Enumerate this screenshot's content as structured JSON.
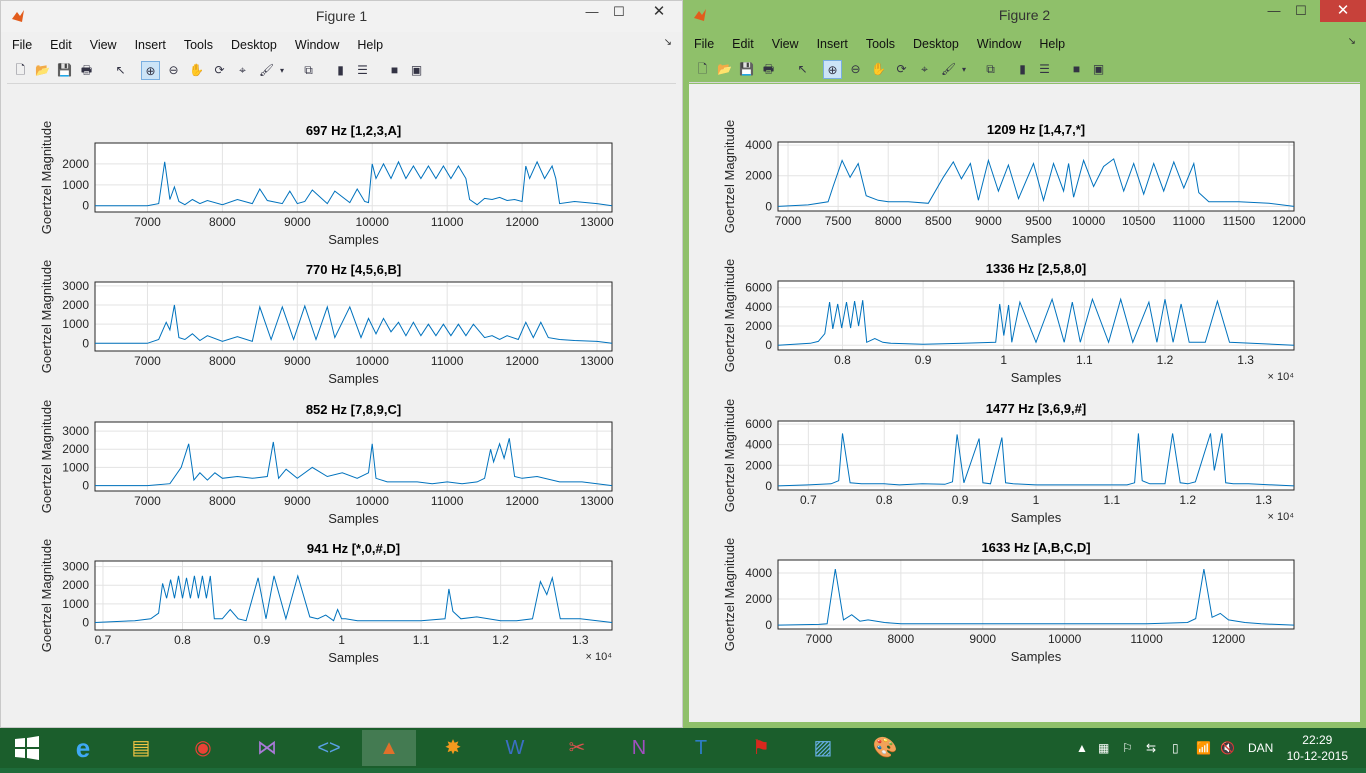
{
  "windows": [
    {
      "title": "Figure 1",
      "menu": [
        "File",
        "Edit",
        "View",
        "Insert",
        "Tools",
        "Desktop",
        "Window",
        "Help"
      ],
      "plots": [
        {
          "title": "697 Hz [1,2,3,A]",
          "ylabel": "Goertzel Magnitude",
          "xlabel": "Samples",
          "xticks": [
            "7000",
            "8000",
            "9000",
            "10000",
            "11000",
            "12000",
            "13000"
          ],
          "yticks": [
            "2000",
            "1000",
            "0"
          ],
          "exponent": ""
        },
        {
          "title": "770 Hz [4,5,6,B]",
          "ylabel": "Goertzel Magnitude",
          "xlabel": "Samples",
          "xticks": [
            "7000",
            "8000",
            "9000",
            "10000",
            "11000",
            "12000",
            "13000"
          ],
          "yticks": [
            "3000",
            "2000",
            "1000",
            "0"
          ],
          "exponent": ""
        },
        {
          "title": "852 Hz [7,8,9,C]",
          "ylabel": "Goertzel Magnitude",
          "xlabel": "Samples",
          "xticks": [
            "7000",
            "8000",
            "9000",
            "10000",
            "11000",
            "12000",
            "13000"
          ],
          "yticks": [
            "3000",
            "2000",
            "1000",
            "0"
          ],
          "exponent": ""
        },
        {
          "title": "941 Hz [*,0,#,D]",
          "ylabel": "Goertzel Magnitude",
          "xlabel": "Samples",
          "xticks": [
            "0.7",
            "0.8",
            "0.9",
            "1",
            "1.1",
            "1.2",
            "1.3"
          ],
          "yticks": [
            "3000",
            "2000",
            "1000",
            "0"
          ],
          "exponent": "× 10⁴"
        }
      ]
    },
    {
      "title": "Figure 2",
      "menu": [
        "File",
        "Edit",
        "View",
        "Insert",
        "Tools",
        "Desktop",
        "Window",
        "Help"
      ],
      "plots": [
        {
          "title": "1209 Hz [1,4,7,*]",
          "ylabel": "Goertzel Magnitude",
          "xlabel": "Samples",
          "xticks": [
            "7000",
            "7500",
            "8000",
            "8500",
            "9000",
            "9500",
            "10000",
            "10500",
            "11000",
            "11500",
            "12000"
          ],
          "yticks": [
            "4000",
            "2000",
            "0"
          ],
          "exponent": ""
        },
        {
          "title": "1336 Hz [2,5,8,0]",
          "ylabel": "Goertzel Magnitude",
          "xlabel": "Samples",
          "xticks": [
            "0.8",
            "0.9",
            "1",
            "1.1",
            "1.2",
            "1.3"
          ],
          "yticks": [
            "6000",
            "4000",
            "2000",
            "0"
          ],
          "exponent": "× 10⁴"
        },
        {
          "title": "1477 Hz [3,6,9,#]",
          "ylabel": "Goertzel Magnitude",
          "xlabel": "Samples",
          "xticks": [
            "0.7",
            "0.8",
            "0.9",
            "1",
            "1.1",
            "1.2",
            "1.3"
          ],
          "yticks": [
            "6000",
            "4000",
            "2000",
            "0"
          ],
          "exponent": "× 10⁴"
        },
        {
          "title": "1633 Hz [A,B,C,D]",
          "ylabel": "Goertzel Magnitude",
          "xlabel": "Samples",
          "xticks": [
            "7000",
            "8000",
            "9000",
            "10000",
            "11000",
            "12000"
          ],
          "yticks": [
            "4000",
            "2000",
            "0"
          ],
          "exponent": ""
        }
      ]
    }
  ],
  "chart_data": [
    {
      "type": "line",
      "title": "697 Hz [1,2,3,A]",
      "xlabel": "Samples",
      "ylabel": "Goertzel Magnitude",
      "xlim": [
        6300,
        13200
      ],
      "ylim": [
        -300,
        3000
      ],
      "x": [
        6300,
        7000,
        7150,
        7230,
        7300,
        7360,
        7420,
        7500,
        7600,
        7700,
        7800,
        8000,
        8200,
        8400,
        8500,
        8600,
        8800,
        8900,
        9000,
        9100,
        9200,
        9400,
        9500,
        9700,
        9800,
        9900,
        9950,
        10000,
        10050,
        10150,
        10250,
        10350,
        10450,
        10550,
        10650,
        10750,
        10850,
        10950,
        11050,
        11150,
        11250,
        11300,
        11400,
        11500,
        11600,
        11700,
        11800,
        11900,
        12000,
        12050,
        12100,
        12200,
        12300,
        12400,
        12450,
        12500,
        12700,
        13000,
        13200
      ],
      "y": [
        0,
        0,
        100,
        2100,
        300,
        900,
        200,
        50,
        300,
        100,
        250,
        50,
        300,
        100,
        800,
        250,
        100,
        700,
        100,
        200,
        750,
        100,
        700,
        150,
        800,
        200,
        150,
        2000,
        1300,
        2000,
        1300,
        2100,
        1300,
        1900,
        1300,
        1900,
        1300,
        1900,
        1300,
        1900,
        1300,
        300,
        50,
        350,
        300,
        400,
        250,
        300,
        200,
        1900,
        1300,
        2100,
        1300,
        1900,
        1300,
        100,
        200,
        100,
        0
      ]
    },
    {
      "type": "line",
      "title": "770 Hz [4,5,6,B]",
      "xlabel": "Samples",
      "ylabel": "Goertzel Magnitude",
      "xlim": [
        6300,
        13200
      ],
      "ylim": [
        -400,
        3200
      ],
      "x": [
        6300,
        7000,
        7150,
        7250,
        7300,
        7360,
        7420,
        7500,
        7600,
        7700,
        7800,
        8000,
        8200,
        8400,
        8500,
        8650,
        8800,
        8950,
        9100,
        9250,
        9400,
        9500,
        9700,
        9850,
        9950,
        10050,
        10150,
        10250,
        10350,
        10450,
        10550,
        10650,
        10750,
        10850,
        10950,
        11050,
        11150,
        11250,
        11350,
        11500,
        11600,
        11700,
        11800,
        11950,
        12050,
        12150,
        12250,
        12350,
        12500,
        12700,
        13000,
        13200
      ],
      "y": [
        0,
        0,
        200,
        1100,
        700,
        2000,
        300,
        200,
        500,
        150,
        400,
        100,
        350,
        100,
        1900,
        200,
        1900,
        200,
        1950,
        200,
        1900,
        300,
        1900,
        300,
        1300,
        500,
        1300,
        600,
        1100,
        400,
        1100,
        400,
        1000,
        400,
        1000,
        400,
        1000,
        400,
        1000,
        300,
        400,
        200,
        400,
        200,
        1100,
        300,
        1100,
        300,
        200,
        150,
        100,
        0
      ]
    },
    {
      "type": "line",
      "title": "852 Hz [7,8,9,C]",
      "xlabel": "Samples",
      "ylabel": "Goertzel Magnitude",
      "xlim": [
        6300,
        13200
      ],
      "ylim": [
        -300,
        3500
      ],
      "x": [
        6300,
        7000,
        7300,
        7450,
        7550,
        7620,
        7700,
        7800,
        7900,
        8000,
        8200,
        8400,
        8600,
        8680,
        8750,
        8850,
        9000,
        9200,
        9400,
        9600,
        9800,
        9950,
        10000,
        10050,
        10200,
        10400,
        10600,
        10800,
        11000,
        11200,
        11400,
        11500,
        11580,
        11620,
        11700,
        11760,
        11830,
        11900,
        12000,
        12200,
        12500,
        12800,
        13200
      ],
      "y": [
        0,
        0,
        100,
        1000,
        2300,
        300,
        700,
        300,
        700,
        400,
        500,
        400,
        500,
        2400,
        400,
        900,
        400,
        1000,
        500,
        700,
        400,
        700,
        2300,
        400,
        200,
        200,
        200,
        100,
        200,
        100,
        200,
        400,
        2000,
        1300,
        2300,
        1500,
        2600,
        500,
        400,
        500,
        200,
        200,
        0
      ]
    },
    {
      "type": "line",
      "title": "941 Hz [*,0,#,D]",
      "xlabel": "Samples",
      "ylabel": "Goertzel Magnitude",
      "xlim": [
        6900,
        13400
      ],
      "ylim": [
        -400,
        3300
      ],
      "x": [
        6900,
        7400,
        7600,
        7700,
        7750,
        7800,
        7850,
        7900,
        7950,
        8000,
        8050,
        8100,
        8150,
        8200,
        8250,
        8300,
        8350,
        8400,
        8500,
        8600,
        8700,
        8800,
        8950,
        9050,
        9150,
        9300,
        9450,
        9600,
        9700,
        9800,
        9900,
        9950,
        10000,
        10050,
        10200,
        10600,
        11000,
        11300,
        11350,
        11400,
        11500,
        11700,
        12000,
        12200,
        12400,
        12500,
        12580,
        12650,
        12750,
        13000,
        13400
      ],
      "y": [
        0,
        100,
        200,
        500,
        2100,
        1300,
        2300,
        1300,
        2500,
        1300,
        2400,
        1300,
        2500,
        1300,
        2500,
        1300,
        2500,
        200,
        200,
        700,
        200,
        100,
        2400,
        200,
        2500,
        200,
        2500,
        300,
        200,
        400,
        100,
        700,
        200,
        200,
        100,
        100,
        100,
        200,
        1800,
        600,
        200,
        300,
        100,
        100,
        200,
        2200,
        1500,
        2400,
        200,
        200,
        0
      ]
    },
    {
      "type": "line",
      "title": "1209 Hz [1,4,7,*]",
      "xlabel": "Samples",
      "ylabel": "Goertzel Magnitude",
      "xlim": [
        6900,
        12050
      ],
      "ylim": [
        -300,
        4200
      ],
      "x": [
        6900,
        7200,
        7400,
        7450,
        7540,
        7620,
        7700,
        7780,
        7900,
        8000,
        8200,
        8400,
        8550,
        8650,
        8730,
        8820,
        8900,
        9000,
        9100,
        9200,
        9300,
        9450,
        9550,
        9650,
        9750,
        9800,
        9850,
        9950,
        10050,
        10150,
        10250,
        10350,
        10450,
        10550,
        10650,
        10750,
        10850,
        10950,
        11050,
        11100,
        11200,
        11500,
        11800,
        12050
      ],
      "y": [
        0,
        100,
        300,
        1300,
        3000,
        1900,
        2800,
        700,
        400,
        300,
        300,
        200,
        1900,
        2900,
        1800,
        2800,
        400,
        3000,
        1000,
        2700,
        500,
        2800,
        400,
        2800,
        1000,
        2800,
        600,
        3000,
        1300,
        2600,
        3100,
        1000,
        2800,
        800,
        2800,
        1000,
        2900,
        1200,
        2800,
        900,
        300,
        300,
        200,
        0
      ]
    },
    {
      "type": "line",
      "title": "1336 Hz [2,5,8,0]",
      "xlabel": "Samples",
      "ylabel": "Goertzel Magnitude",
      "xlim": [
        7200,
        13600
      ],
      "ylim": [
        -500,
        6700
      ],
      "x": [
        7200,
        7600,
        7700,
        7780,
        7840,
        7880,
        7940,
        7990,
        8050,
        8100,
        8150,
        8200,
        8250,
        8300,
        8400,
        8500,
        8600,
        9000,
        9500,
        9900,
        9950,
        10000,
        10060,
        10100,
        10200,
        10400,
        10600,
        10750,
        10850,
        10950,
        11100,
        11300,
        11450,
        11600,
        11800,
        11900,
        12000,
        12100,
        12200,
        12300,
        12500,
        12650,
        12800,
        13600
      ],
      "y": [
        0,
        200,
        400,
        1200,
        4500,
        1700,
        4300,
        1800,
        4500,
        1800,
        4600,
        2000,
        4700,
        300,
        700,
        300,
        200,
        100,
        200,
        300,
        4300,
        1000,
        4200,
        300,
        4500,
        300,
        4800,
        300,
        4500,
        300,
        4800,
        300,
        4800,
        300,
        4500,
        300,
        4800,
        300,
        4300,
        300,
        300,
        4600,
        300,
        0
      ]
    },
    {
      "type": "line",
      "title": "1477 Hz [3,6,9,#]",
      "xlabel": "Samples",
      "ylabel": "Goertzel Magnitude",
      "xlim": [
        6600,
        13400
      ],
      "ylim": [
        -400,
        6300
      ],
      "x": [
        6600,
        7000,
        7300,
        7400,
        7450,
        7550,
        7700,
        8000,
        8200,
        8500,
        8800,
        8900,
        8960,
        9050,
        9250,
        9300,
        9400,
        9550,
        9600,
        9700,
        10000,
        10500,
        11000,
        11200,
        11300,
        11350,
        11400,
        11500,
        11700,
        11800,
        11900,
        12000,
        12100,
        12300,
        12350,
        12450,
        12500,
        12600,
        12800,
        13400
      ],
      "y": [
        0,
        100,
        200,
        500,
        5100,
        300,
        200,
        200,
        100,
        200,
        150,
        400,
        5000,
        300,
        4600,
        300,
        200,
        4700,
        300,
        200,
        100,
        100,
        100,
        100,
        300,
        5100,
        500,
        200,
        200,
        5100,
        300,
        200,
        400,
        5100,
        1500,
        5100,
        300,
        200,
        200,
        0
      ]
    },
    {
      "type": "line",
      "title": "1633 Hz [A,B,C,D]",
      "xlabel": "Samples",
      "ylabel": "Goertzel Magnitude",
      "xlim": [
        6500,
        12800
      ],
      "ylim": [
        -300,
        5000
      ],
      "x": [
        6500,
        7000,
        7100,
        7200,
        7300,
        7400,
        7500,
        7600,
        7800,
        8000,
        8500,
        9000,
        9500,
        10000,
        10500,
        11000,
        11500,
        11600,
        11700,
        11800,
        11900,
        12000,
        12200,
        12400,
        12800
      ],
      "y": [
        0,
        50,
        100,
        4300,
        400,
        800,
        300,
        400,
        200,
        100,
        100,
        100,
        100,
        100,
        100,
        100,
        200,
        500,
        4300,
        600,
        900,
        400,
        200,
        100,
        0
      ]
    }
  ]
}
